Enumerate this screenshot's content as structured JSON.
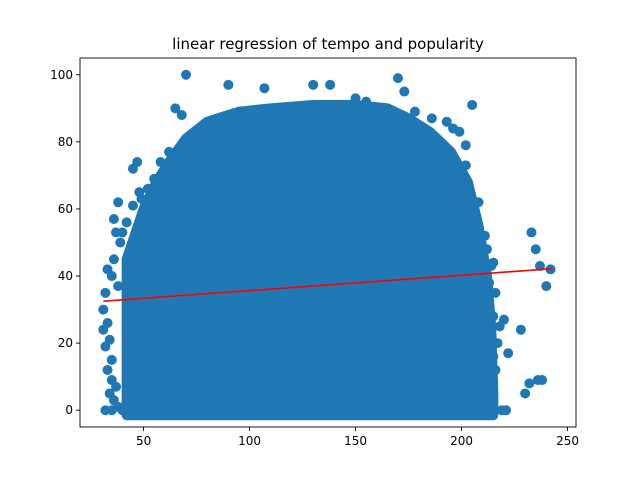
{
  "chart_data": {
    "type": "scatter",
    "title": "linear regression of tempo and popularity",
    "xlabel": "",
    "ylabel": "",
    "xlim": [
      20,
      254
    ],
    "ylim": [
      -5,
      105
    ],
    "xticks": [
      50,
      100,
      150,
      200,
      250
    ],
    "yticks": [
      0,
      20,
      40,
      60,
      80,
      100
    ],
    "grid": false,
    "colors": {
      "points": "#1f77b4",
      "regression": "#ff0000"
    },
    "regression_line": {
      "x": [
        31,
        243
      ],
      "y": [
        32.5,
        42.2
      ]
    },
    "density_envelope": [
      {
        "x": 42,
        "y_top": 45
      },
      {
        "x": 50,
        "y_top": 60
      },
      {
        "x": 56,
        "y_top": 68
      },
      {
        "x": 62,
        "y_top": 74
      },
      {
        "x": 70,
        "y_top": 81
      },
      {
        "x": 80,
        "y_top": 86
      },
      {
        "x": 95,
        "y_top": 89
      },
      {
        "x": 110,
        "y_top": 90
      },
      {
        "x": 130,
        "y_top": 91
      },
      {
        "x": 150,
        "y_top": 91
      },
      {
        "x": 165,
        "y_top": 90
      },
      {
        "x": 175,
        "y_top": 87
      },
      {
        "x": 185,
        "y_top": 83
      },
      {
        "x": 195,
        "y_top": 77
      },
      {
        "x": 203,
        "y_top": 68
      },
      {
        "x": 208,
        "y_top": 55
      },
      {
        "x": 212,
        "y_top": 40
      },
      {
        "x": 214,
        "y_top": 25
      },
      {
        "x": 215,
        "y_top": 5
      }
    ],
    "points": [
      [
        70,
        100
      ],
      [
        90,
        97
      ],
      [
        107,
        96
      ],
      [
        130,
        97
      ],
      [
        138,
        97
      ],
      [
        150,
        93
      ],
      [
        155,
        92
      ],
      [
        170,
        99
      ],
      [
        173,
        95
      ],
      [
        178,
        89
      ],
      [
        186,
        87
      ],
      [
        193,
        86
      ],
      [
        196,
        84
      ],
      [
        202,
        79
      ],
      [
        205,
        91
      ],
      [
        199,
        83
      ],
      [
        65,
        90
      ],
      [
        68,
        88
      ],
      [
        62,
        77
      ],
      [
        58,
        74
      ],
      [
        60,
        71
      ],
      [
        55,
        69
      ],
      [
        52,
        66
      ],
      [
        47,
        74
      ],
      [
        45,
        72
      ],
      [
        48,
        65
      ],
      [
        49,
        63
      ],
      [
        45,
        61
      ],
      [
        42,
        56
      ],
      [
        38,
        62
      ],
      [
        36,
        57
      ],
      [
        40,
        53
      ],
      [
        37,
        53
      ],
      [
        39,
        50
      ],
      [
        33,
        42
      ],
      [
        35,
        40
      ],
      [
        36,
        45
      ],
      [
        38,
        37
      ],
      [
        32,
        35
      ],
      [
        31,
        30
      ],
      [
        33,
        26
      ],
      [
        31,
        24
      ],
      [
        34,
        21
      ],
      [
        32,
        19
      ],
      [
        35,
        15
      ],
      [
        33,
        12
      ],
      [
        35,
        9
      ],
      [
        37,
        7
      ],
      [
        34,
        5
      ],
      [
        36,
        3
      ],
      [
        38,
        1
      ],
      [
        32,
        0
      ],
      [
        35,
        0
      ],
      [
        40,
        0
      ],
      [
        46,
        0
      ],
      [
        52,
        0
      ],
      [
        206,
        58
      ],
      [
        208,
        62
      ],
      [
        211,
        52
      ],
      [
        212,
        48
      ],
      [
        214,
        43
      ],
      [
        213,
        38
      ],
      [
        216,
        35
      ],
      [
        215,
        28
      ],
      [
        218,
        25
      ],
      [
        217,
        20
      ],
      [
        215,
        16
      ],
      [
        216,
        12
      ],
      [
        214,
        9
      ],
      [
        213,
        6
      ],
      [
        212,
        3
      ],
      [
        211,
        1
      ],
      [
        210,
        0
      ],
      [
        215,
        0
      ],
      [
        219,
        0
      ],
      [
        221,
        0
      ],
      [
        220,
        27
      ],
      [
        222,
        17
      ],
      [
        228,
        24
      ],
      [
        230,
        5
      ],
      [
        232,
        8
      ],
      [
        233,
        53
      ],
      [
        235,
        48
      ],
      [
        236,
        9
      ],
      [
        237,
        43
      ],
      [
        238,
        9
      ],
      [
        240,
        37
      ],
      [
        242,
        42
      ],
      [
        202,
        73
      ],
      [
        200,
        70
      ],
      [
        204,
        65
      ],
      [
        209,
        45
      ],
      [
        215,
        44
      ]
    ]
  }
}
